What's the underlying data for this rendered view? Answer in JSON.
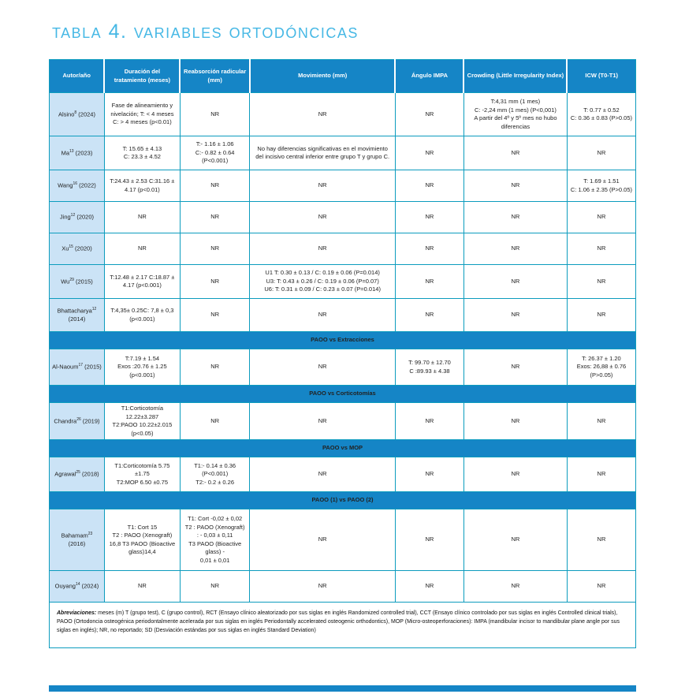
{
  "page": {
    "title": "Tabla 4. Variables ortodóncicas"
  },
  "colors": {
    "header_blue": "#1585c6",
    "section_blue": "#1585c6",
    "border_teal": "#0c9cbe",
    "author_cell_blue": "#cbe3f6",
    "title_blue": "#46b8e5"
  },
  "table": {
    "columns": [
      "Autor/año",
      "Duración del tratamiento (meses)",
      "Reabsorción radicular (mm)",
      "Movimiento (mm)",
      "Ángulo IMPA",
      "Crowding (Little Irregularity Index)",
      "ICW (T0-T1)"
    ],
    "rows": [
      {
        "type": "study",
        "author": "Alsino",
        "ref": "8",
        "year": "(2024)",
        "cells": [
          "Fase de alineamiento y\nnivelación; T: < 4 meses\nC:  > 4 meses (p<0.01)",
          "NR",
          "NR",
          "NR",
          "T:4,31 mm (1 mes)\nC: -2,24 mm (1 mes) (P<0,001)\nA partir del 4º y 5º mes no hubo\ndiferencias",
          "T: 0.77 ± 0.52\nC: 0.36 ± 0.83 (P>0.05)"
        ]
      },
      {
        "type": "study",
        "author": "Ma",
        "ref": "13",
        "year": "(2023)",
        "cells": [
          "T: 15.65 ± 4.13\nC: 23.3 ± 4.52",
          "T:- 1.16 ± 1.06\nC:- 0.82 ± 0.64\n(P<0.001)",
          "No hay diferencias significativas en el movimiento del incisivo central inferior entre grupo T y grupo C.",
          "NR",
          "NR",
          "NR"
        ]
      },
      {
        "type": "study",
        "author": "Wang",
        "ref": "16",
        "year": "(2022)",
        "cells": [
          "T:24.43 ± 2.53 C:31.16 ± 4.17  (p<0.01)",
          "NR",
          "NR",
          "NR",
          "NR",
          "T: 1.69 ± 1.51\nC: 1.06 ± 2.35 (P>0.05)"
        ]
      },
      {
        "type": "study",
        "author": "Jing",
        "ref": "12",
        "year": "(2020)",
        "cells": [
          "NR",
          "NR",
          "NR",
          "NR",
          "NR",
          "NR"
        ]
      },
      {
        "type": "study",
        "author": "Xu",
        "ref": "15",
        "year": "(2020)",
        "cells": [
          "NR",
          "NR",
          "NR",
          "NR",
          "NR",
          "NR"
        ]
      },
      {
        "type": "study",
        "author": "Wu",
        "ref": "29",
        "year": "(2015)",
        "cells": [
          "T:12.48 ± 2.17 C:18.87 ± 4.17 (p<0.001)",
          "NR",
          "U1 T: 0.30 ± 0.13 / C: 0.19 ± 0.06 (P=0.014)\nU3: T: 0.43 ± 0.26 / C: 0.19 ± 0.06 (P=0.07)\nU6: T: 0.31 ± 0.09 / C: 0.23 ± 0.07 (P=0.014)",
          "NR",
          "NR",
          "NR"
        ]
      },
      {
        "type": "study",
        "author": "Bhattacharya",
        "ref": "12",
        "year": "(2014)",
        "cells": [
          "T:4,35± 0.25C: 7,8 ± 0,3\n(p<0.001)",
          "NR",
          "NR",
          "NR",
          "NR",
          "NR"
        ]
      },
      {
        "type": "section",
        "label": "PAOO vs Extracciones"
      },
      {
        "type": "study",
        "author": "Al-Naoum",
        "ref": "17",
        "year": "(2015)",
        "cells": [
          "T:7.19 ± 1.54\nExos :20.76 ± 1.25\n(p<0.001)",
          "NR",
          "NR",
          "T: 99.70 ± 12.70\nC :89.93 ± 4.38",
          "NR",
          "T: 26.37 ± 1.20\nExos: 26,88 ± 0.76\n(P>0.05)"
        ]
      },
      {
        "type": "section",
        "label": "PAOO vs Corticotomías"
      },
      {
        "type": "study",
        "author": "Chandra",
        "ref": "26",
        "year": "(2019)",
        "cells": [
          "T1:Corticotomía\n12.22±3.287\nT2:PAOO  10.22±2.015\n(p<0.05)",
          "NR",
          "NR",
          "NR",
          "NR",
          "NR"
        ]
      },
      {
        "type": "section",
        "label": "PAOO vs MOP"
      },
      {
        "type": "study",
        "author": "Agrawal",
        "ref": "25",
        "year": "(2018)",
        "cells": [
          "T1:Corticotomía 5.75\n±1.75\nT2:MOP 6.50 ±0.75",
          "T1:- 0.14 ± 0.36\n(P<0.001)\nT2:- 0.2 ± 0.26",
          "NR",
          "NR",
          "NR",
          "NR"
        ]
      },
      {
        "type": "section",
        "label": "PAOO (1) vs PAOO (2)"
      },
      {
        "type": "study",
        "author": "Bahamam",
        "ref": "23",
        "year": "(2016)",
        "cells": [
          "T1: Cort 15\nT2 : PAOO (Xenograft)\n16,8 T3 PAOO (Bioactive\nglass)14,4",
          "T1: Cort -0,02 ± 0,02\nT2 : PAOO (Xenograft)\n: - 0,03 ± 0,11\nT3 PAOO (Bioactive\nglass) -\n0,01 ± 0,01",
          "NR",
          "NR",
          "NR",
          "NR"
        ]
      },
      {
        "type": "study",
        "author": "Ouyang",
        "ref": "14",
        "year": "(2024)",
        "cells": [
          "NR",
          "NR",
          "NR",
          "NR",
          "NR",
          "NR"
        ]
      }
    ],
    "footnote": {
      "label": "Abreviaciones:",
      "text": " meses (m) T (grupo test), C (grupo control), RCT (Ensayo clínico aleatorizado por sus siglas en inglés Randomized controlled trial), CCT (Ensayo clínico controlado por sus siglas en inglés Controlled clinical trials), PAOO (Ortodoncia osteogénica periodontalmente acelerada por sus siglas en inglés Periodontally accelerated osteogenic orthodontics), MOP (Micro-osteoperforaciones): IMPA (mandibular incisor to mandibular plane angle por sus siglas en inglés); NR, no reportado; SD (Desviación estándas por sus siglas en inglés Standard Deviation)"
    }
  }
}
